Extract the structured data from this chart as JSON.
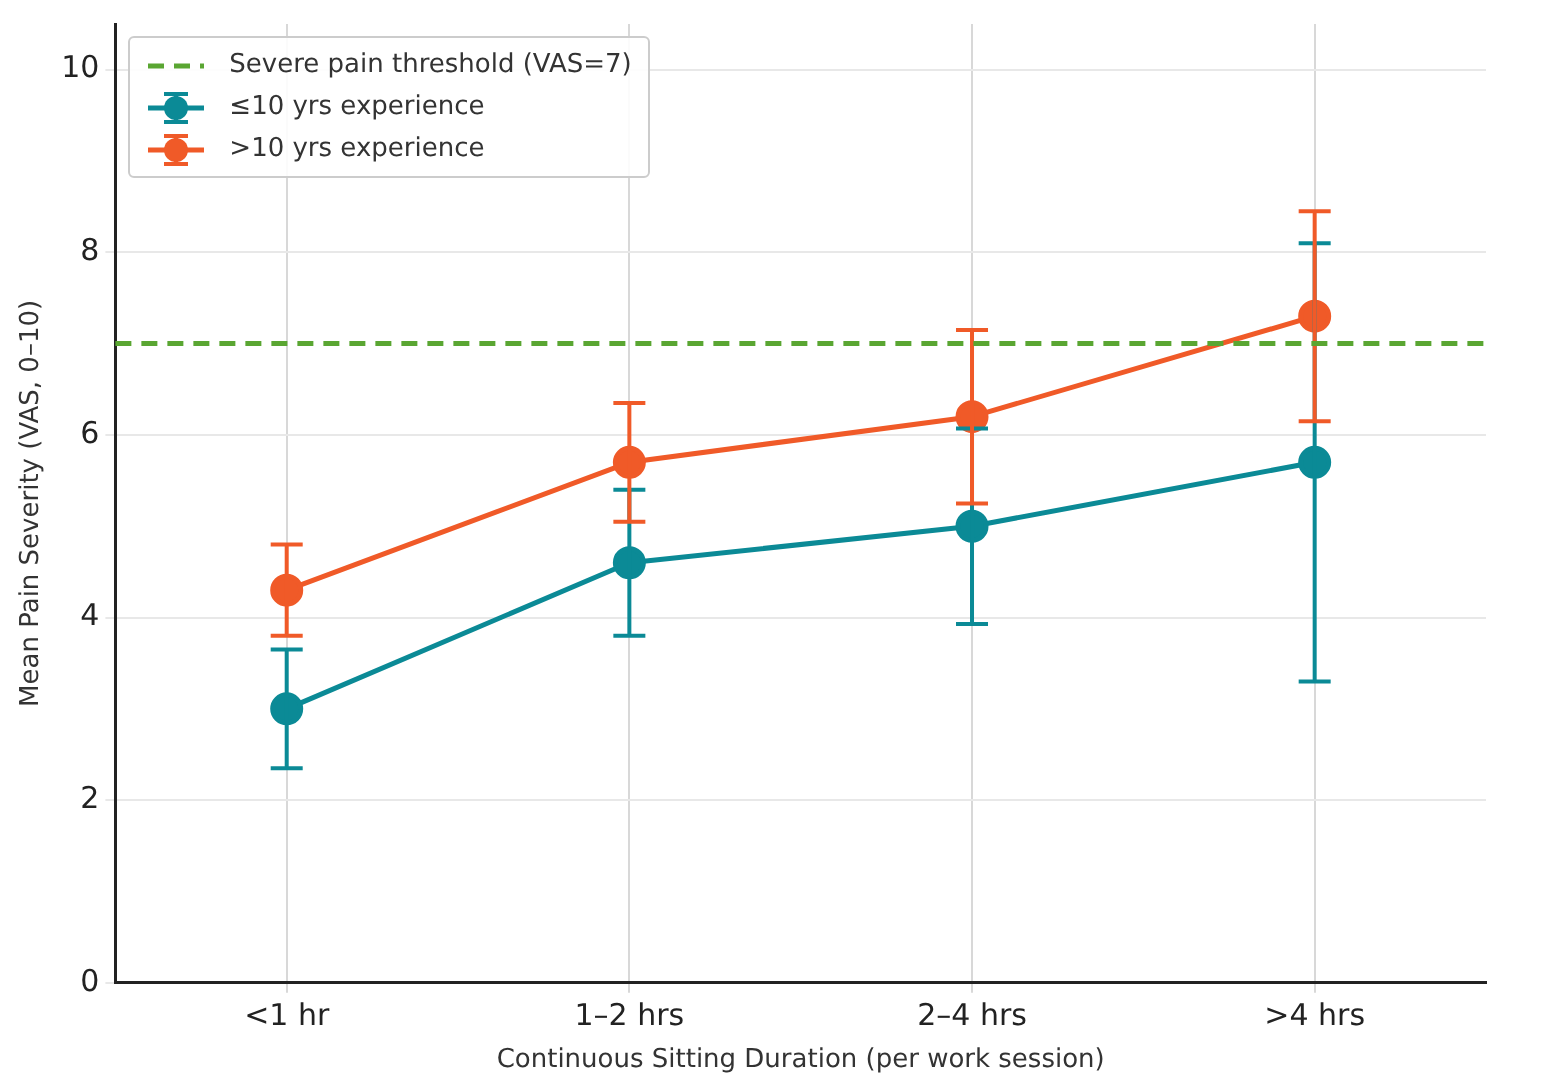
{
  "chart_data": {
    "type": "line",
    "xlabel": "Continuous Sitting Duration (per work session)",
    "ylabel": "Mean Pain Severity (VAS, 0–10)",
    "categories": [
      "<1 hr",
      "1–2 hrs",
      "2–4 hrs",
      ">4 hrs"
    ],
    "series": [
      {
        "name": "≤10 yrs experience",
        "color": "#0b8a96",
        "values": [
          3.0,
          4.6,
          5.0,
          5.7
        ],
        "errors": [
          0.65,
          0.8,
          1.07,
          2.4
        ]
      },
      {
        "name": ">10 yrs experience",
        "color": "#f05a28",
        "values": [
          4.3,
          5.7,
          6.2,
          7.3
        ],
        "errors": [
          0.5,
          0.65,
          0.95,
          1.15
        ]
      }
    ],
    "ref_lines": [
      {
        "axis": "y",
        "value": 7,
        "label": "Severe pain threshold (VAS=7)",
        "color": "#5aa632",
        "line_style": "dashed"
      }
    ],
    "ylim": [
      0,
      10.5
    ],
    "yticks": [
      0,
      2,
      4,
      6,
      8,
      10
    ],
    "grid": true,
    "legend": "top left",
    "marker": "circle",
    "line_style": "solid"
  }
}
